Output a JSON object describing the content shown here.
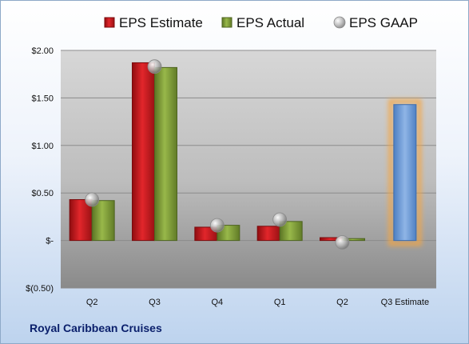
{
  "chart_data": {
    "type": "bar",
    "title": "",
    "xlabel": "",
    "ylabel": "",
    "categories": [
      "Q2",
      "Q3",
      "Q4",
      "Q1",
      "Q2",
      "Q3 Estimate"
    ],
    "series": [
      {
        "name": "EPS Estimate",
        "type": "bar",
        "color": "#c0161b",
        "values": [
          0.43,
          1.87,
          0.14,
          0.15,
          0.03,
          null
        ]
      },
      {
        "name": "EPS Actual",
        "type": "bar",
        "color": "#7a9a33",
        "values": [
          0.42,
          1.82,
          0.16,
          0.2,
          0.02,
          null
        ]
      },
      {
        "name": "EPS GAAP",
        "type": "scatter",
        "color": "#a9a9a9",
        "values": [
          0.43,
          1.83,
          0.16,
          0.22,
          -0.02,
          null
        ]
      },
      {
        "name": "",
        "type": "bar",
        "color": "#5f93d6",
        "highlight": "#f5a642",
        "values": [
          null,
          null,
          null,
          null,
          null,
          1.43
        ]
      }
    ],
    "ylim": [
      -0.5,
      2.0
    ],
    "yticks": [
      -0.5,
      0,
      0.5,
      1.0,
      1.5,
      2.0
    ],
    "ytick_labels": [
      "$(0.50)",
      "$-",
      "$0.50",
      "$1.00",
      "$1.50",
      "$2.00"
    ],
    "grid": true,
    "legend": "top"
  },
  "footer": {
    "company": "Royal Caribbean Cruises"
  }
}
